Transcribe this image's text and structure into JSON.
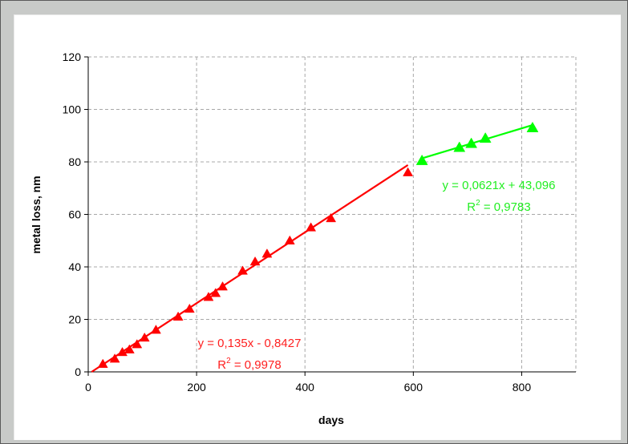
{
  "chart_data": {
    "type": "scatter",
    "xlabel": "days",
    "ylabel": "metal loss, nm",
    "xlim": [
      0,
      900
    ],
    "ylim": [
      0,
      120
    ],
    "x_ticks": [
      "0",
      "200",
      "400",
      "600",
      "800"
    ],
    "y_ticks": [
      "0",
      "20",
      "40",
      "60",
      "80",
      "100",
      "120"
    ],
    "grid": true,
    "legend": false,
    "series": [
      {
        "color": "#ff0000",
        "marker": "triangle",
        "points": [
          [
            27,
            3
          ],
          [
            49,
            5
          ],
          [
            63,
            7.5
          ],
          [
            76,
            8.5
          ],
          [
            90,
            10.5
          ],
          [
            104,
            13
          ],
          [
            125,
            16
          ],
          [
            166,
            21
          ],
          [
            187,
            24
          ],
          [
            222,
            28.5
          ],
          [
            235,
            30
          ],
          [
            248,
            32.5
          ],
          [
            285,
            38.5
          ],
          [
            308,
            42
          ],
          [
            330,
            45
          ],
          [
            372,
            50
          ],
          [
            411,
            55
          ],
          [
            448,
            58.5
          ],
          [
            590,
            76
          ]
        ],
        "trendline": {
          "x_range": [
            0,
            590
          ],
          "slope": 0.135,
          "intercept": -0.8427,
          "equation": "y = 0,135x - 0,8427",
          "r2_prefix": "R",
          "r2_sup": "2",
          "r2_value": " = 0,9978"
        }
      },
      {
        "color": "#00ff00",
        "marker": "triangle",
        "points": [
          [
            616,
            80.5
          ],
          [
            685,
            85.5
          ],
          [
            707,
            87
          ],
          [
            733,
            89
          ],
          [
            820,
            93
          ]
        ],
        "trendline": {
          "x_range": [
            616,
            820
          ],
          "slope": 0.0621,
          "intercept": 43.096,
          "equation": "y = 0,0621x + 43,096",
          "r2_prefix": "R",
          "r2_sup": "2",
          "r2_value": " = 0,9783"
        }
      }
    ]
  }
}
